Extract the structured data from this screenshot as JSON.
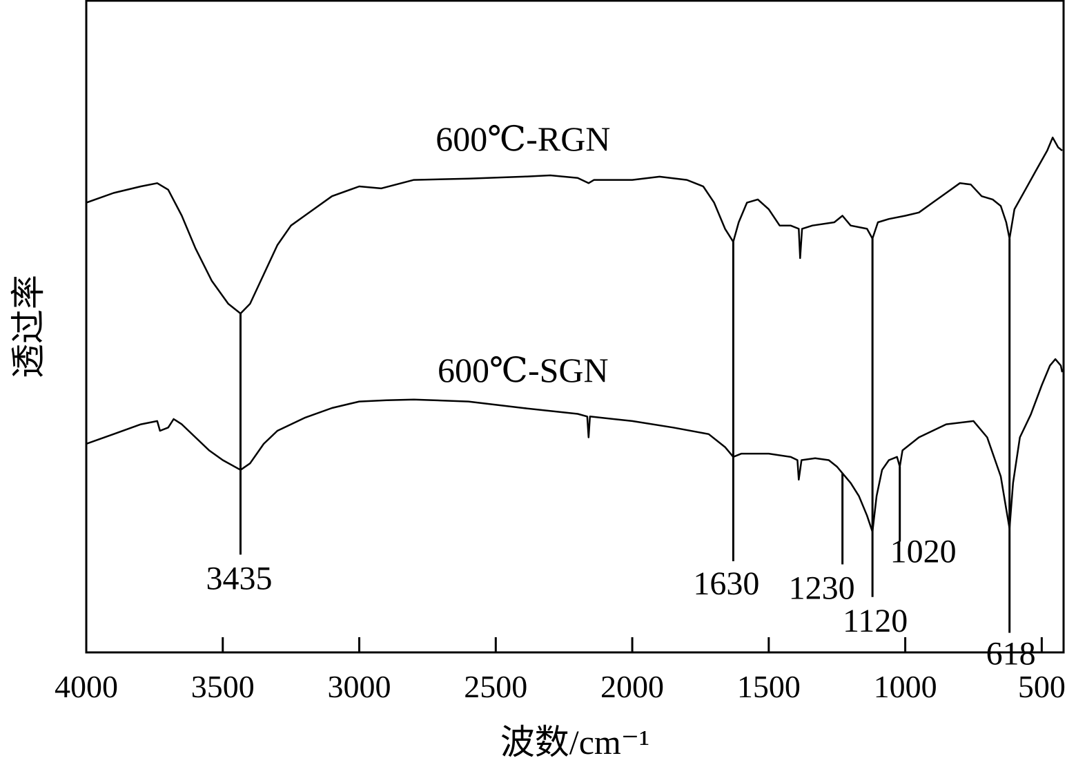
{
  "chart_data": {
    "type": "line",
    "xlabel": "波数/cm⁻¹",
    "ylabel": "透过率",
    "xlim": [
      4000,
      420
    ],
    "x_reversed": true,
    "y_units": "arbitrary (relative transmittance, curves offset)",
    "ylim": [
      0,
      100
    ],
    "grid": false,
    "x_ticks": [
      4000,
      3500,
      3000,
      2500,
      2000,
      1500,
      1000,
      500
    ],
    "x_tick_labels": [
      "4000",
      "3500",
      "3000",
      "2500",
      "2000",
      "1500",
      "1000",
      "500"
    ],
    "series": [
      {
        "name": "600℃-RGN",
        "label": "600℃-RGN",
        "label_anchor": [
          2400,
          77
        ],
        "points": [
          [
            4000,
            69
          ],
          [
            3900,
            70.5
          ],
          [
            3800,
            71.5
          ],
          [
            3740,
            72
          ],
          [
            3700,
            71
          ],
          [
            3650,
            67
          ],
          [
            3600,
            62
          ],
          [
            3540,
            57
          ],
          [
            3480,
            53.5
          ],
          [
            3435,
            52
          ],
          [
            3400,
            53.5
          ],
          [
            3350,
            58
          ],
          [
            3300,
            62.5
          ],
          [
            3250,
            65.5
          ],
          [
            3200,
            67
          ],
          [
            3100,
            70
          ],
          [
            3000,
            71.5
          ],
          [
            2920,
            71.2
          ],
          [
            2800,
            72.5
          ],
          [
            2600,
            72.7
          ],
          [
            2400,
            73
          ],
          [
            2300,
            73.2
          ],
          [
            2200,
            72.8
          ],
          [
            2160,
            72
          ],
          [
            2140,
            72.5
          ],
          [
            2000,
            72.5
          ],
          [
            1900,
            73
          ],
          [
            1800,
            72.5
          ],
          [
            1740,
            71.5
          ],
          [
            1700,
            69
          ],
          [
            1660,
            65
          ],
          [
            1630,
            63
          ],
          [
            1610,
            66
          ],
          [
            1580,
            69
          ],
          [
            1540,
            69.5
          ],
          [
            1500,
            68
          ],
          [
            1460,
            65.5
          ],
          [
            1420,
            65.5
          ],
          [
            1390,
            65
          ],
          [
            1385,
            60.5
          ],
          [
            1378,
            65
          ],
          [
            1340,
            65.5
          ],
          [
            1260,
            66
          ],
          [
            1230,
            67
          ],
          [
            1200,
            65.5
          ],
          [
            1140,
            65
          ],
          [
            1120,
            63.5
          ],
          [
            1100,
            66
          ],
          [
            1060,
            66.5
          ],
          [
            1000,
            67
          ],
          [
            950,
            67.5
          ],
          [
            900,
            69
          ],
          [
            850,
            70.5
          ],
          [
            800,
            72
          ],
          [
            760,
            71.8
          ],
          [
            720,
            70
          ],
          [
            680,
            69.5
          ],
          [
            650,
            68.5
          ],
          [
            630,
            66
          ],
          [
            618,
            63.5
          ],
          [
            600,
            68
          ],
          [
            560,
            71
          ],
          [
            520,
            74
          ],
          [
            480,
            77
          ],
          [
            460,
            79
          ],
          [
            440,
            77.5
          ],
          [
            425,
            77
          ]
        ]
      },
      {
        "name": "600℃-SGN",
        "label": "600℃-SGN",
        "label_anchor": [
          2400,
          41.5
        ],
        "points": [
          [
            4000,
            32
          ],
          [
            3900,
            33.5
          ],
          [
            3800,
            35
          ],
          [
            3740,
            35.5
          ],
          [
            3730,
            34
          ],
          [
            3700,
            34.5
          ],
          [
            3680,
            35.8
          ],
          [
            3650,
            35
          ],
          [
            3600,
            33
          ],
          [
            3550,
            31
          ],
          [
            3500,
            29.5
          ],
          [
            3435,
            28
          ],
          [
            3400,
            29
          ],
          [
            3350,
            32
          ],
          [
            3300,
            34
          ],
          [
            3200,
            36
          ],
          [
            3100,
            37.5
          ],
          [
            3000,
            38.5
          ],
          [
            2900,
            38.7
          ],
          [
            2800,
            38.8
          ],
          [
            2600,
            38.5
          ],
          [
            2400,
            37.5
          ],
          [
            2200,
            36.6
          ],
          [
            2165,
            36.2
          ],
          [
            2160,
            33
          ],
          [
            2155,
            36.2
          ],
          [
            2000,
            35.5
          ],
          [
            1850,
            34.5
          ],
          [
            1720,
            33.5
          ],
          [
            1660,
            31.5
          ],
          [
            1630,
            30
          ],
          [
            1600,
            30.5
          ],
          [
            1500,
            30.5
          ],
          [
            1420,
            30
          ],
          [
            1395,
            29.5
          ],
          [
            1390,
            26.5
          ],
          [
            1380,
            29.5
          ],
          [
            1330,
            29.8
          ],
          [
            1280,
            29.5
          ],
          [
            1250,
            28.5
          ],
          [
            1230,
            27.5
          ],
          [
            1200,
            26
          ],
          [
            1170,
            24
          ],
          [
            1140,
            21
          ],
          [
            1120,
            18.5
          ],
          [
            1105,
            24
          ],
          [
            1085,
            28
          ],
          [
            1060,
            29.5
          ],
          [
            1030,
            30
          ],
          [
            1020,
            28.5
          ],
          [
            1010,
            31
          ],
          [
            950,
            33
          ],
          [
            850,
            35
          ],
          [
            750,
            35.5
          ],
          [
            700,
            33
          ],
          [
            650,
            27
          ],
          [
            630,
            22
          ],
          [
            618,
            19
          ],
          [
            605,
            26
          ],
          [
            580,
            33
          ],
          [
            540,
            36.5
          ],
          [
            500,
            41
          ],
          [
            470,
            44
          ],
          [
            450,
            45
          ],
          [
            430,
            44
          ],
          [
            425,
            43
          ]
        ]
      }
    ],
    "peak_markers": [
      {
        "x": 3435,
        "label": "3435",
        "y_top": 52,
        "y_bottom": 15
      },
      {
        "x": 1630,
        "label": "1630",
        "y_top": 63,
        "y_bottom": 14
      },
      {
        "x": 1230,
        "label": "1230",
        "y_top": 27.5,
        "y_bottom": 13.5
      },
      {
        "x": 1120,
        "label": "1120",
        "y_top": 63.5,
        "y_bottom": 8.5
      },
      {
        "x": 1020,
        "label": "1020",
        "y_top": 28.5,
        "y_bottom": 17
      },
      {
        "x": 618,
        "label": "618",
        "y_top": 63.5,
        "y_bottom": 3
      }
    ]
  }
}
